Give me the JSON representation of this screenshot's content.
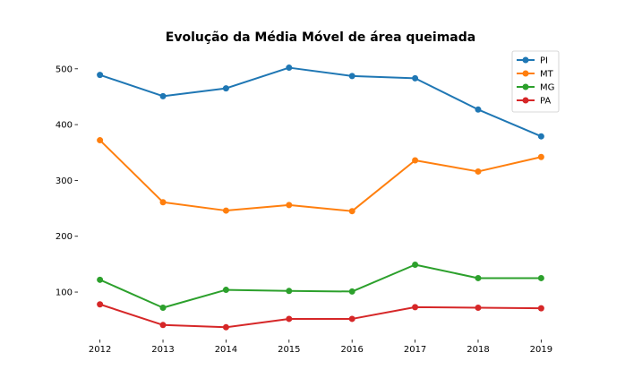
{
  "chart_data": {
    "type": "line",
    "title": "Evolução da Média Móvel de área queimada",
    "xlabel": "",
    "ylabel": "",
    "x": [
      2012,
      2013,
      2014,
      2015,
      2016,
      2017,
      2018,
      2019
    ],
    "x_tick_labels": [
      "2012",
      "2013",
      "2014",
      "2015",
      "2016",
      "2017",
      "2018",
      "2019"
    ],
    "ylim": [
      15,
      535
    ],
    "y_ticks": [
      100,
      200,
      300,
      400,
      500
    ],
    "y_tick_labels": [
      "100",
      "200",
      "300",
      "400",
      "500"
    ],
    "grid": false,
    "legend_position": "top-right",
    "series": [
      {
        "name": "PI",
        "color": "#1f77b4",
        "values": [
          489,
          451,
          465,
          502,
          487,
          483,
          427,
          379
        ]
      },
      {
        "name": "MT",
        "color": "#ff7f0e",
        "values": [
          372,
          261,
          246,
          256,
          245,
          336,
          316,
          342
        ]
      },
      {
        "name": "MG",
        "color": "#2ca02c",
        "values": [
          122,
          72,
          104,
          102,
          101,
          149,
          125,
          125
        ]
      },
      {
        "name": "PA",
        "color": "#d62728",
        "values": [
          78,
          41,
          37,
          52,
          52,
          73,
          72,
          71
        ]
      }
    ]
  }
}
